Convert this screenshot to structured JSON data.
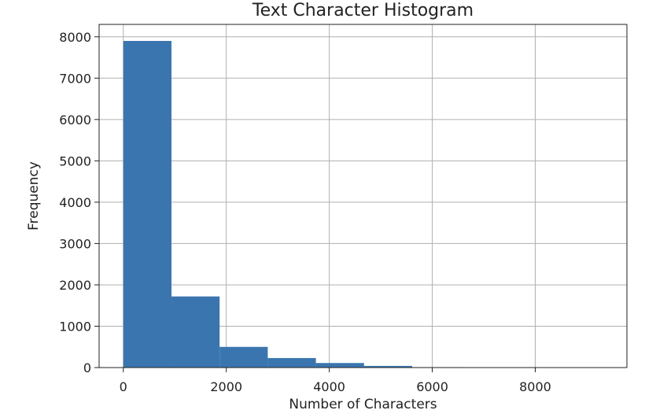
{
  "chart_data": {
    "type": "bar",
    "title": "Text Character Histogram",
    "xlabel": "Number of Characters",
    "ylabel": "Frequency",
    "xlim": [
      -470,
      9780
    ],
    "ylim": [
      0,
      8300
    ],
    "xticks": [
      0,
      2000,
      4000,
      6000,
      8000
    ],
    "yticks": [
      0,
      1000,
      2000,
      3000,
      4000,
      5000,
      6000,
      7000,
      8000
    ],
    "grid": true,
    "bar_color": "#3A75AF",
    "bins": [
      {
        "x0": 0,
        "x1": 935,
        "value": 7900
      },
      {
        "x0": 935,
        "x1": 1870,
        "value": 1720
      },
      {
        "x0": 1870,
        "x1": 2805,
        "value": 500
      },
      {
        "x0": 2805,
        "x1": 3740,
        "value": 230
      },
      {
        "x0": 3740,
        "x1": 4675,
        "value": 110
      },
      {
        "x0": 4675,
        "x1": 5610,
        "value": 40
      },
      {
        "x0": 5610,
        "x1": 6545,
        "value": 10
      },
      {
        "x0": 6545,
        "x1": 7480,
        "value": 5
      },
      {
        "x0": 7480,
        "x1": 8415,
        "value": 3
      },
      {
        "x0": 8415,
        "x1": 9350,
        "value": 2
      }
    ]
  }
}
